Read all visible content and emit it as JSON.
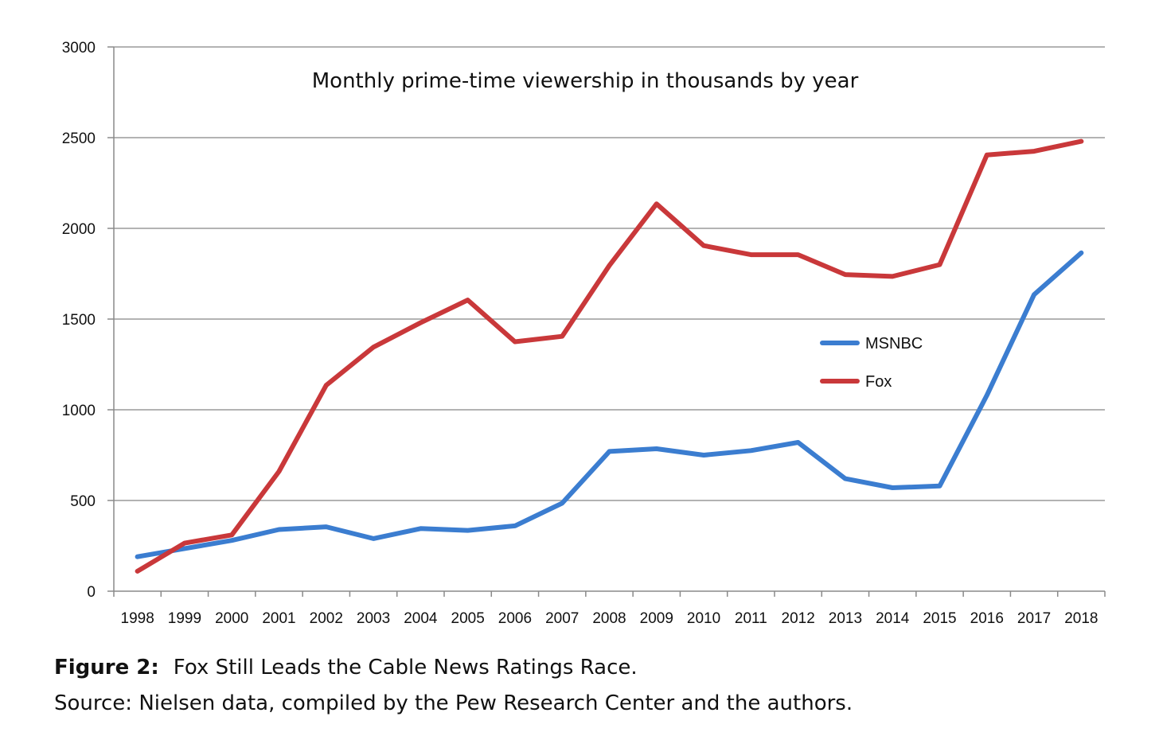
{
  "chart_data": {
    "type": "line",
    "title": "Monthly prime-time viewership in thousands by year",
    "xlabel": "",
    "ylabel": "",
    "x": [
      "1998",
      "1999",
      "2000",
      "2001",
      "2002",
      "2003",
      "2004",
      "2005",
      "2006",
      "2007",
      "2008",
      "2009",
      "2010",
      "2011",
      "2012",
      "2013",
      "2014",
      "2015",
      "2016",
      "2017",
      "2018"
    ],
    "ylim": [
      0,
      3000
    ],
    "yticks": [
      0,
      500,
      1000,
      1500,
      2000,
      2500,
      3000
    ],
    "grid": "horizontal",
    "legend_position": "right-middle",
    "series": [
      {
        "name": "MSNBC",
        "color": "#3b7dd0",
        "values": [
          190,
          235,
          280,
          340,
          355,
          290,
          345,
          335,
          360,
          485,
          770,
          785,
          750,
          775,
          820,
          620,
          570,
          580,
          1080,
          1635,
          1865
        ]
      },
      {
        "name": "Fox",
        "color": "#c9383a",
        "values": [
          110,
          265,
          310,
          660,
          1135,
          1345,
          1480,
          1605,
          1375,
          1405,
          1795,
          2135,
          1905,
          1855,
          1855,
          1745,
          1735,
          1800,
          2405,
          2425,
          2480
        ]
      }
    ]
  },
  "caption": {
    "label": "Figure 2:",
    "title": "Fox Still Leads the Cable News Ratings Race.",
    "source": "Source: Nielsen data, compiled by the Pew Research Center and the authors."
  }
}
